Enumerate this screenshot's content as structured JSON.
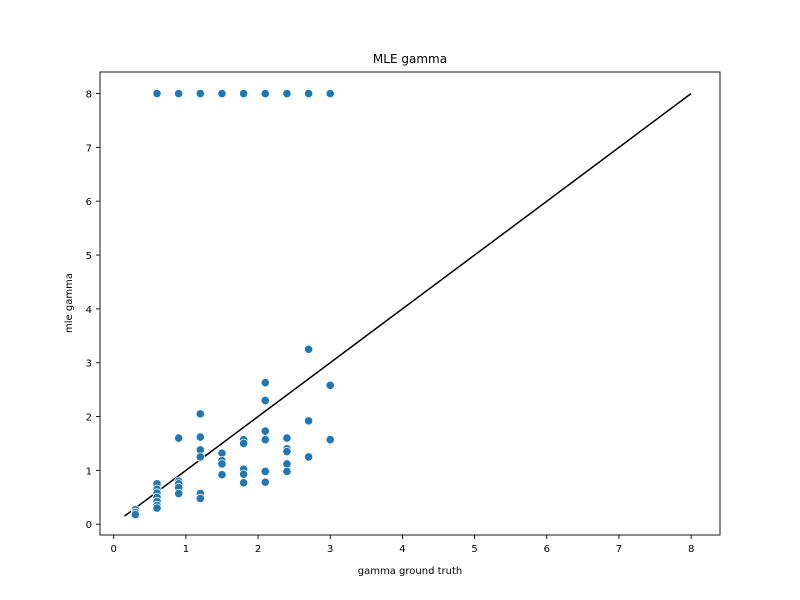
{
  "chart_data": {
    "type": "scatter",
    "title": "MLE gamma",
    "xlabel": "gamma ground truth",
    "ylabel": "mle gamma",
    "xlim": [
      -0.19,
      8.4
    ],
    "ylim": [
      -0.2,
      8.4
    ],
    "xticks": [
      0,
      1,
      2,
      3,
      4,
      5,
      6,
      7,
      8
    ],
    "yticks": [
      0,
      1,
      2,
      3,
      4,
      5,
      6,
      7,
      8
    ],
    "grid": false,
    "marker_color": "#1f77b4",
    "line_color": "#000000",
    "reference_line": {
      "x": [
        0.15,
        8.0
      ],
      "y": [
        0.15,
        8.0
      ]
    },
    "points": [
      [
        0.3,
        0.27
      ],
      [
        0.3,
        0.22
      ],
      [
        0.3,
        0.18
      ],
      [
        0.6,
        8.0
      ],
      [
        0.6,
        0.75
      ],
      [
        0.6,
        0.65
      ],
      [
        0.6,
        0.58
      ],
      [
        0.6,
        0.5
      ],
      [
        0.6,
        0.42
      ],
      [
        0.6,
        0.35
      ],
      [
        0.6,
        0.3
      ],
      [
        0.9,
        8.0
      ],
      [
        0.9,
        1.6
      ],
      [
        0.9,
        0.8
      ],
      [
        0.9,
        0.75
      ],
      [
        0.9,
        0.68
      ],
      [
        0.9,
        0.57
      ],
      [
        1.2,
        8.0
      ],
      [
        1.2,
        2.05
      ],
      [
        1.2,
        1.62
      ],
      [
        1.2,
        1.38
      ],
      [
        1.2,
        1.25
      ],
      [
        1.2,
        0.57
      ],
      [
        1.2,
        0.48
      ],
      [
        1.5,
        8.0
      ],
      [
        1.5,
        1.32
      ],
      [
        1.5,
        1.18
      ],
      [
        1.5,
        1.12
      ],
      [
        1.5,
        0.92
      ],
      [
        1.8,
        8.0
      ],
      [
        1.8,
        1.57
      ],
      [
        1.8,
        1.5
      ],
      [
        1.8,
        1.02
      ],
      [
        1.8,
        0.93
      ],
      [
        1.8,
        0.77
      ],
      [
        2.1,
        8.0
      ],
      [
        2.1,
        2.63
      ],
      [
        2.1,
        2.3
      ],
      [
        2.1,
        1.73
      ],
      [
        2.1,
        1.57
      ],
      [
        2.1,
        0.98
      ],
      [
        2.1,
        0.78
      ],
      [
        2.4,
        8.0
      ],
      [
        2.4,
        1.6
      ],
      [
        2.4,
        1.4
      ],
      [
        2.4,
        1.35
      ],
      [
        2.4,
        1.12
      ],
      [
        2.4,
        0.98
      ],
      [
        2.7,
        8.0
      ],
      [
        2.7,
        3.25
      ],
      [
        2.7,
        1.92
      ],
      [
        2.7,
        1.25
      ],
      [
        3.0,
        8.0
      ],
      [
        3.0,
        2.58
      ],
      [
        3.0,
        1.57
      ]
    ]
  }
}
